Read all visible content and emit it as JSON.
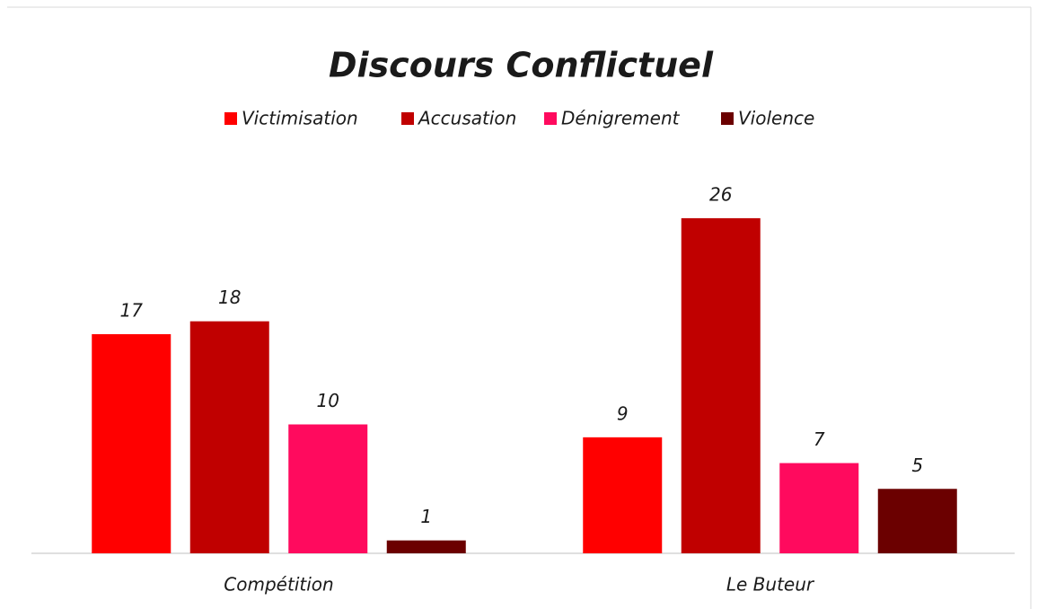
{
  "chart_data": {
    "type": "bar",
    "title": "Discours Conflictuel",
    "categories": [
      "Compétition",
      "Le Buteur"
    ],
    "series": [
      {
        "name": "Victimisation",
        "color": "#ff0000",
        "values": [
          17,
          9
        ]
      },
      {
        "name": "Accusation",
        "color": "#c00000",
        "values": [
          18,
          26
        ]
      },
      {
        "name": "Dénigrement",
        "color": "#ff0a5e",
        "values": [
          10,
          7
        ]
      },
      {
        "name": "Violence",
        "color": "#6b0000",
        "values": [
          1,
          5
        ]
      }
    ],
    "legend": "top"
  }
}
